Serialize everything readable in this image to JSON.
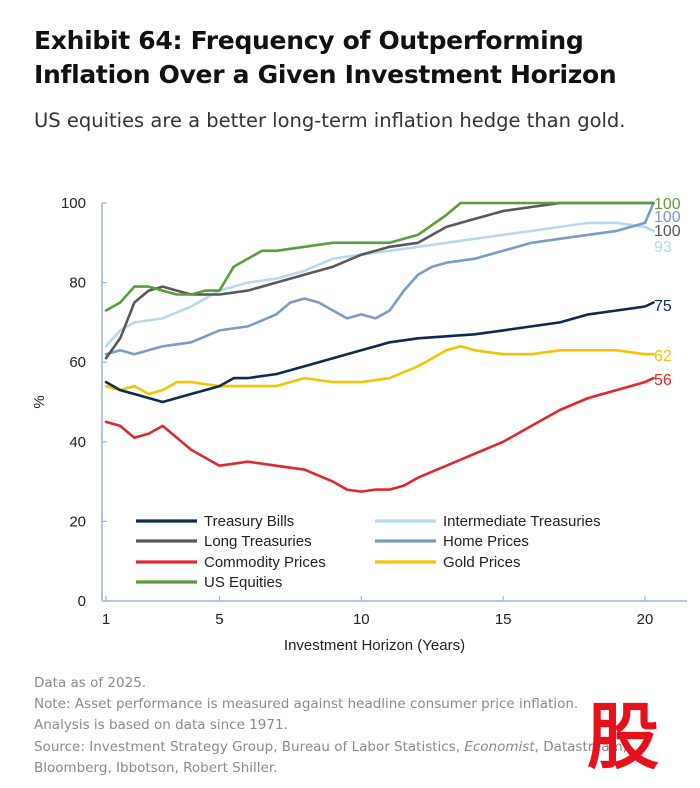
{
  "title": "Exhibit 64: Frequency of Outperforming Inflation Over a Given Investment Horizon",
  "subtitle": "US equities are a better long-term inflation hedge than gold.",
  "notes": {
    "line1": "Data as of 2025.",
    "line2": "Note: Asset performance is measured against headline consumer price inflation.",
    "line3": "Analysis is based on data since 1971.",
    "line4_prefix": "Source: Investment Strategy Group, Bureau of Labor Statistics, ",
    "line4_italic": "Economist",
    "line4_suffix": ", Datastream,",
    "line5": "Bloomberg, Ibbotson, Robert Shiller."
  },
  "watermark": {
    "glyph": "股",
    "color": "#e8101a",
    "icon": "stock-logo-icon"
  },
  "chart_data": {
    "type": "line",
    "title": "Exhibit 64: Frequency of Outperforming Inflation Over a Given Investment Horizon",
    "xlabel": "Investment Horizon (Years)",
    "ylabel": "%",
    "xlim": [
      1,
      21.5
    ],
    "ylim": [
      0,
      100
    ],
    "xticks": [
      1,
      5,
      10,
      15,
      20
    ],
    "yticks": [
      0,
      20,
      40,
      60,
      80,
      100
    ],
    "grid": false,
    "legend_position": "bottom-left",
    "series": [
      {
        "name": "Treasury Bills",
        "color": "#0d2b4e",
        "end_label": "75",
        "x": [
          1,
          1.5,
          2,
          2.5,
          3,
          3.5,
          4,
          4.5,
          5,
          5.5,
          6,
          7,
          8,
          9,
          10,
          11,
          12,
          13,
          14,
          15,
          16,
          17,
          18,
          19,
          20,
          20.3
        ],
        "y": [
          55,
          53,
          52,
          51,
          50,
          51,
          52,
          53,
          54,
          56,
          56,
          57,
          59,
          61,
          63,
          65,
          66,
          66.5,
          67,
          68,
          69,
          70,
          72,
          73,
          74,
          75
        ]
      },
      {
        "name": "Intermediate Treasuries",
        "color": "#b8d8ee",
        "end_label": "93",
        "x": [
          1,
          1.5,
          2,
          3,
          4,
          5,
          6,
          7,
          8,
          9,
          10,
          11,
          12,
          13,
          14,
          15,
          16,
          17,
          18,
          19,
          20,
          20.3
        ],
        "y": [
          64,
          68,
          70,
          71,
          74,
          78,
          80,
          81,
          83,
          86,
          87,
          88,
          89,
          90,
          91,
          92,
          93,
          94,
          95,
          95,
          94,
          93
        ]
      },
      {
        "name": "Long Treasuries",
        "color": "#595959",
        "end_label": "100",
        "x": [
          1,
          1.5,
          2,
          2.5,
          3,
          3.5,
          4,
          4.5,
          5,
          6,
          7,
          8,
          9,
          10,
          11,
          12,
          13,
          14,
          15,
          16,
          17,
          18,
          19,
          20,
          20.3
        ],
        "y": [
          61,
          66,
          75,
          78,
          79,
          78,
          77,
          77,
          77,
          78,
          80,
          82,
          84,
          87,
          89,
          90,
          94,
          96,
          98,
          99,
          100,
          100,
          100,
          100,
          100
        ]
      },
      {
        "name": "Home Prices",
        "color": "#7a9cc6",
        "end_label": "100",
        "x": [
          1,
          1.5,
          2,
          3,
          4,
          5,
          6,
          7,
          7.5,
          8,
          8.5,
          9,
          9.5,
          10,
          10.5,
          11,
          11.5,
          12,
          12.5,
          13,
          14,
          15,
          16,
          17,
          18,
          19,
          19.5,
          20,
          20.3
        ],
        "y": [
          62,
          63,
          62,
          64,
          65,
          68,
          69,
          72,
          75,
          76,
          75,
          73,
          71,
          72,
          71,
          73,
          78,
          82,
          84,
          85,
          86,
          88,
          90,
          91,
          92,
          93,
          94,
          95,
          100
        ]
      },
      {
        "name": "Commodity Prices",
        "color": "#e0282c",
        "end_label": "56",
        "x": [
          1,
          1.5,
          2,
          2.5,
          3,
          3.5,
          4,
          4.5,
          5,
          6,
          7,
          8,
          9,
          9.5,
          10,
          10.5,
          11,
          11.5,
          12,
          13,
          14,
          15,
          16,
          17,
          18,
          19,
          20,
          20.3
        ],
        "y": [
          45,
          44,
          41,
          42,
          44,
          41,
          38,
          36,
          34,
          35,
          34,
          33,
          30,
          28,
          27.5,
          28,
          28,
          29,
          31,
          34,
          37,
          40,
          44,
          48,
          51,
          53,
          55,
          56
        ]
      },
      {
        "name": "Gold Prices",
        "color": "#f5c400",
        "end_label": "62",
        "x": [
          1,
          1.5,
          2,
          2.5,
          3,
          3.5,
          4,
          5,
          6,
          7,
          8,
          9,
          10,
          11,
          12,
          13,
          13.5,
          14,
          15,
          16,
          17,
          18,
          19,
          20,
          20.3
        ],
        "y": [
          54,
          53,
          54,
          52,
          53,
          55,
          55,
          54,
          54,
          54,
          56,
          55,
          55,
          56,
          59,
          63,
          64,
          63,
          62,
          62,
          63,
          63,
          63,
          62,
          62
        ]
      },
      {
        "name": "US Equities",
        "color": "#5a9e3c",
        "end_label": "100",
        "x": [
          1,
          1.5,
          2,
          2.5,
          3,
          3.5,
          4,
          4.5,
          5,
          5.5,
          6,
          6.5,
          7,
          8,
          9,
          10,
          11,
          12,
          13,
          13.5,
          14,
          15,
          16,
          17,
          18,
          19,
          20,
          20.3
        ],
        "y": [
          73,
          75,
          79,
          79,
          78,
          77,
          77,
          78,
          78,
          84,
          86,
          88,
          88,
          89,
          90,
          90,
          90,
          92,
          97,
          100,
          100,
          100,
          100,
          100,
          100,
          100,
          100,
          100
        ]
      }
    ]
  }
}
